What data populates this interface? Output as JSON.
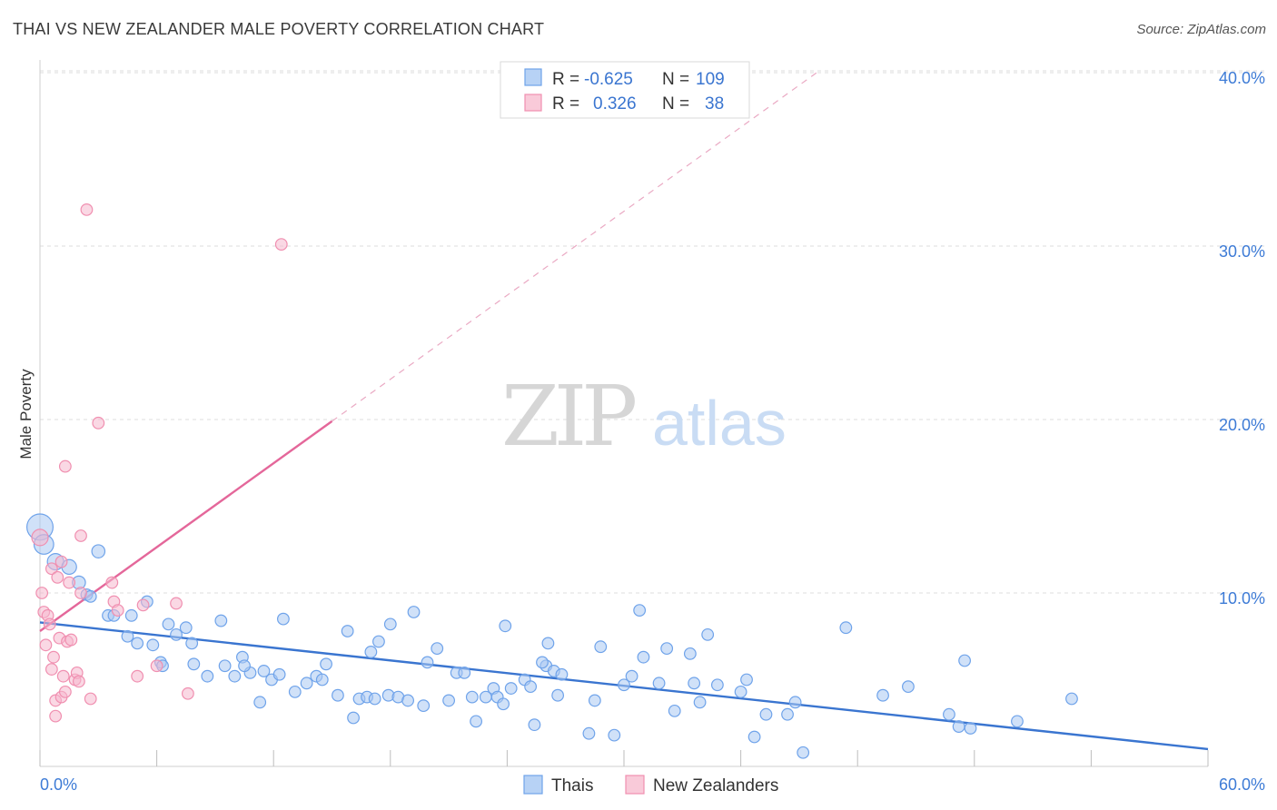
{
  "title": "THAI VS NEW ZEALANDER MALE POVERTY CORRELATION CHART",
  "source": "Source: ZipAtlas.com",
  "watermark": {
    "zip": "ZIP",
    "atlas": "atlas"
  },
  "legend_top": [
    {
      "r_label": "R =",
      "r_value": "-0.625",
      "n_label": "N =",
      "n_value": "109",
      "color": "#6fa3ea"
    },
    {
      "r_label": "R =",
      "r_value": "0.326",
      "n_label": "N =",
      "n_value": "38",
      "color": "#f08fb0"
    }
  ],
  "legend_bottom": [
    {
      "label": "Thais",
      "color": "#6fa3ea"
    },
    {
      "label": "New Zealanders",
      "color": "#f08fb0"
    }
  ],
  "colors": {
    "blue": "#3a75d0",
    "blue_fill": "#a9c8f2",
    "pink": "#e4679a",
    "pink_fill": "#f6b8cd",
    "grid": "#dcdcdc",
    "axis_label": "#3d7bd6"
  },
  "chart_data": {
    "type": "scatter",
    "title": "THAI VS NEW ZEALANDER MALE POVERTY CORRELATION CHART",
    "xlabel": "",
    "ylabel": "Male Poverty",
    "xlim": [
      0,
      60
    ],
    "ylim": [
      0,
      42
    ],
    "x_tick_labels": [
      "0.0%",
      "60.0%"
    ],
    "y_ticks": [
      10,
      20,
      30,
      40
    ],
    "y_tick_labels": [
      "10.0%",
      "20.0%",
      "30.0%",
      "40.0%"
    ],
    "grid": true,
    "legend_position": "top-center",
    "series": [
      {
        "name": "Thais",
        "color": "#6fa3ea",
        "r": -0.625,
        "n": 109,
        "trend": {
          "x": [
            0,
            60
          ],
          "y": [
            8.3,
            1.0
          ]
        },
        "points": [
          [
            0.0,
            13.8,
            1.6
          ],
          [
            0.2,
            12.8,
            1.2
          ],
          [
            0.8,
            11.8,
            1.0
          ],
          [
            1.5,
            11.5,
            0.9
          ],
          [
            3.0,
            12.4,
            0.8
          ],
          [
            2.0,
            10.6,
            0.8
          ],
          [
            2.4,
            9.9,
            0.7
          ],
          [
            2.6,
            9.8,
            0.7
          ],
          [
            3.5,
            8.7,
            0.7
          ],
          [
            3.8,
            8.7,
            0.7
          ],
          [
            4.7,
            8.7,
            0.7
          ],
          [
            5.5,
            9.5,
            0.7
          ],
          [
            4.5,
            7.5,
            0.7
          ],
          [
            5.0,
            7.1,
            0.7
          ],
          [
            5.8,
            7.0,
            0.7
          ],
          [
            6.6,
            8.2,
            0.7
          ],
          [
            7.0,
            7.6,
            0.7
          ],
          [
            7.5,
            8.0,
            0.7
          ],
          [
            7.8,
            7.1,
            0.7
          ],
          [
            9.3,
            8.4,
            0.7
          ],
          [
            6.2,
            6.0,
            0.7
          ],
          [
            6.3,
            5.8,
            0.7
          ],
          [
            7.9,
            5.9,
            0.7
          ],
          [
            8.6,
            5.2,
            0.7
          ],
          [
            9.5,
            5.8,
            0.7
          ],
          [
            10.0,
            5.2,
            0.7
          ],
          [
            10.4,
            6.3,
            0.7
          ],
          [
            10.8,
            5.4,
            0.7
          ],
          [
            10.5,
            5.8,
            0.7
          ],
          [
            11.5,
            5.5,
            0.7
          ],
          [
            11.3,
            3.7,
            0.7
          ],
          [
            11.9,
            5.0,
            0.7
          ],
          [
            12.3,
            5.3,
            0.7
          ],
          [
            12.5,
            8.5,
            0.7
          ],
          [
            13.1,
            4.3,
            0.7
          ],
          [
            13.7,
            4.8,
            0.7
          ],
          [
            14.2,
            5.2,
            0.7
          ],
          [
            14.5,
            5.0,
            0.7
          ],
          [
            14.7,
            5.9,
            0.7
          ],
          [
            15.3,
            4.1,
            0.7
          ],
          [
            16.1,
            2.8,
            0.7
          ],
          [
            15.8,
            7.8,
            0.7
          ],
          [
            16.4,
            3.9,
            0.7
          ],
          [
            16.8,
            4.0,
            0.7
          ],
          [
            17.2,
            3.9,
            0.7
          ],
          [
            17.0,
            6.6,
            0.7
          ],
          [
            17.4,
            7.2,
            0.7
          ],
          [
            17.9,
            4.1,
            0.7
          ],
          [
            18.4,
            4.0,
            0.7
          ],
          [
            18.0,
            8.2,
            0.7
          ],
          [
            18.9,
            3.8,
            0.7
          ],
          [
            19.2,
            8.9,
            0.7
          ],
          [
            19.7,
            3.5,
            0.7
          ],
          [
            19.9,
            6.0,
            0.7
          ],
          [
            20.4,
            6.8,
            0.7
          ],
          [
            21.0,
            3.8,
            0.7
          ],
          [
            21.4,
            5.4,
            0.7
          ],
          [
            21.8,
            5.4,
            0.7
          ],
          [
            22.2,
            4.0,
            0.7
          ],
          [
            22.4,
            2.6,
            0.7
          ],
          [
            22.9,
            4.0,
            0.7
          ],
          [
            23.3,
            4.5,
            0.7
          ],
          [
            23.5,
            4.0,
            0.7
          ],
          [
            23.8,
            3.6,
            0.7
          ],
          [
            24.2,
            4.5,
            0.7
          ],
          [
            23.9,
            8.1,
            0.7
          ],
          [
            24.9,
            5.0,
            0.7
          ],
          [
            25.2,
            4.6,
            0.7
          ],
          [
            25.4,
            2.4,
            0.7
          ],
          [
            26.0,
            5.8,
            0.7
          ],
          [
            26.1,
            7.1,
            0.7
          ],
          [
            26.4,
            5.5,
            0.7
          ],
          [
            26.6,
            4.1,
            0.7
          ],
          [
            26.8,
            5.3,
            0.7
          ],
          [
            28.2,
            1.9,
            0.7
          ],
          [
            28.5,
            3.8,
            0.7
          ],
          [
            28.8,
            6.9,
            0.7
          ],
          [
            29.5,
            1.8,
            0.7
          ],
          [
            30.0,
            4.7,
            0.7
          ],
          [
            30.4,
            5.2,
            0.7
          ],
          [
            30.8,
            9.0,
            0.7
          ],
          [
            31.0,
            6.3,
            0.7
          ],
          [
            31.8,
            4.8,
            0.7
          ],
          [
            32.2,
            6.8,
            0.7
          ],
          [
            32.6,
            3.2,
            0.7
          ],
          [
            33.4,
            6.5,
            0.7
          ],
          [
            33.6,
            4.8,
            0.7
          ],
          [
            33.9,
            3.7,
            0.7
          ],
          [
            34.3,
            7.6,
            0.7
          ],
          [
            34.8,
            4.7,
            0.7
          ],
          [
            36.0,
            4.3,
            0.7
          ],
          [
            36.3,
            5.0,
            0.7
          ],
          [
            36.7,
            1.7,
            0.7
          ],
          [
            37.3,
            3.0,
            0.7
          ],
          [
            38.4,
            3.0,
            0.7
          ],
          [
            38.8,
            3.7,
            0.7
          ],
          [
            39.2,
            0.8,
            0.7
          ],
          [
            41.4,
            8.0,
            0.7
          ],
          [
            43.3,
            4.1,
            0.7
          ],
          [
            44.6,
            4.6,
            0.7
          ],
          [
            46.7,
            3.0,
            0.7
          ],
          [
            47.2,
            2.3,
            0.7
          ],
          [
            47.8,
            2.2,
            0.7
          ],
          [
            47.5,
            6.1,
            0.7
          ],
          [
            50.2,
            2.6,
            0.7
          ],
          [
            53.0,
            3.9,
            0.7
          ],
          [
            25.8,
            6.0,
            0.7
          ]
        ]
      },
      {
        "name": "New Zealanders",
        "color": "#f08fb0",
        "r": 0.326,
        "n": 38,
        "trend": {
          "x": [
            0,
            15
          ],
          "y": [
            7.8,
            19.9
          ]
        },
        "trend_extended": {
          "x": [
            15,
            39.9
          ],
          "y": [
            19.9,
            40.0
          ]
        },
        "points": [
          [
            0.0,
            13.2,
            1.0
          ],
          [
            0.1,
            10.0,
            0.7
          ],
          [
            0.2,
            8.9,
            0.7
          ],
          [
            0.4,
            8.7,
            0.7
          ],
          [
            0.3,
            7.0,
            0.7
          ],
          [
            0.5,
            8.2,
            0.7
          ],
          [
            0.6,
            11.4,
            0.7
          ],
          [
            0.7,
            6.3,
            0.7
          ],
          [
            0.8,
            3.8,
            0.7
          ],
          [
            0.8,
            2.9,
            0.7
          ],
          [
            0.9,
            10.9,
            0.7
          ],
          [
            1.0,
            7.4,
            0.7
          ],
          [
            1.1,
            4.0,
            0.7
          ],
          [
            1.1,
            11.8,
            0.7
          ],
          [
            1.2,
            5.2,
            0.7
          ],
          [
            1.3,
            4.3,
            0.7
          ],
          [
            1.3,
            17.3,
            0.7
          ],
          [
            1.4,
            7.2,
            0.7
          ],
          [
            1.5,
            10.6,
            0.7
          ],
          [
            1.6,
            7.3,
            0.7
          ],
          [
            1.8,
            5.0,
            0.7
          ],
          [
            1.9,
            5.4,
            0.7
          ],
          [
            2.0,
            4.9,
            0.7
          ],
          [
            2.1,
            10.0,
            0.7
          ],
          [
            2.1,
            13.3,
            0.7
          ],
          [
            2.4,
            32.1,
            0.7
          ],
          [
            2.6,
            3.9,
            0.7
          ],
          [
            3.0,
            19.8,
            0.7
          ],
          [
            3.7,
            10.6,
            0.7
          ],
          [
            3.8,
            9.5,
            0.7
          ],
          [
            4.0,
            9.0,
            0.7
          ],
          [
            5.0,
            5.2,
            0.7
          ],
          [
            5.3,
            9.3,
            0.7
          ],
          [
            6.0,
            5.8,
            0.7
          ],
          [
            7.0,
            9.4,
            0.7
          ],
          [
            7.6,
            4.2,
            0.7
          ],
          [
            12.4,
            30.1,
            0.7
          ],
          [
            0.6,
            5.6,
            0.7
          ]
        ]
      }
    ]
  }
}
